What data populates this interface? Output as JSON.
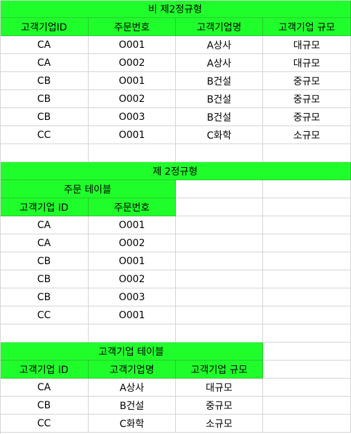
{
  "colors": {
    "header_fill": "#1ffe2a",
    "grid_line": "#d4d4d4",
    "background": "#ffffff"
  },
  "sheet": {
    "section1": {
      "title": "비 제2정규형",
      "headers": [
        "고객기업ID",
        "주문번호",
        "고객기업명",
        "고객기업 규모"
      ],
      "rows": [
        [
          "CA",
          "O001",
          "A상사",
          "대규모"
        ],
        [
          "CA",
          "O002",
          "A상사",
          "대규모"
        ],
        [
          "CB",
          "O001",
          "B건설",
          "중규모"
        ],
        [
          "CB",
          "O002",
          "B건설",
          "중규모"
        ],
        [
          "CB",
          "O003",
          "B건설",
          "중규모"
        ],
        [
          "CC",
          "O001",
          "C화학",
          "소규모"
        ]
      ]
    },
    "section2": {
      "title": "제 2정규형",
      "order_table": {
        "title": "주문 테이블",
        "headers": [
          "고객기업 ID",
          "주문번호"
        ],
        "rows": [
          [
            "CA",
            "O001"
          ],
          [
            "CA",
            "O002"
          ],
          [
            "CB",
            "O001"
          ],
          [
            "CB",
            "O002"
          ],
          [
            "CB",
            "O003"
          ],
          [
            "CC",
            "O001"
          ]
        ]
      },
      "company_table": {
        "title": "고객기업 테이블",
        "headers": [
          "고객기업 ID",
          "고객기업명",
          "고객기업 규모"
        ],
        "rows": [
          [
            "CA",
            "A상사",
            "대규모"
          ],
          [
            "CB",
            "B건설",
            "중규모"
          ],
          [
            "CC",
            "C화학",
            "소규모"
          ]
        ]
      }
    }
  }
}
